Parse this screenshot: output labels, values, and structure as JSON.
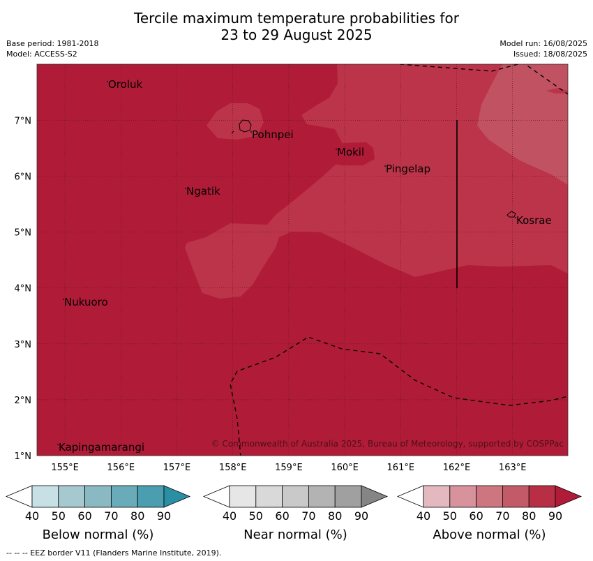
{
  "title_line1": "Tercile maximum temperature probabilities for",
  "title_line2": "23 to 29 August 2025",
  "base_period": "Base period: 1981-2018",
  "model": "Model: ACCESS-S2",
  "model_run": "Model run: 16/08/2025",
  "issued": "Issued: 18/08/2025",
  "copyright": "© Commonwealth of Australia 2025, Bureau of Meteorology, supported by COSPPac",
  "footnote": "--  --  -- EEZ border V11 (Flanders Marine Institute, 2019).",
  "axes": {
    "lon_ticks": [
      "155°E",
      "156°E",
      "157°E",
      "158°E",
      "159°E",
      "160°E",
      "161°E",
      "162°E",
      "163°E"
    ],
    "lat_ticks": [
      "1°N",
      "2°N",
      "3°N",
      "4°N",
      "5°N",
      "6°N",
      "7°N"
    ]
  },
  "places": [
    {
      "name": "Oroluk"
    },
    {
      "name": "Pohnpei"
    },
    {
      "name": "Mokil"
    },
    {
      "name": "Pingelap"
    },
    {
      "name": "Ngatik"
    },
    {
      "name": "Kosrae"
    },
    {
      "name": "Nukuoro"
    },
    {
      "name": "Kapingamarangi"
    }
  ],
  "colorbars": [
    {
      "label": "Below normal (%)",
      "ticks": [
        "40",
        "50",
        "60",
        "70",
        "80",
        "90"
      ],
      "colors": [
        "#ffffff",
        "#c7e0e6",
        "#a6c8cf",
        "#8ab9c3",
        "#6aabb9",
        "#4a9eb0",
        "#2a8ea5"
      ]
    },
    {
      "label": "Near normal (%)",
      "ticks": [
        "40",
        "50",
        "60",
        "70",
        "80",
        "90"
      ],
      "colors": [
        "#ffffff",
        "#e6e6e6",
        "#d9d9d9",
        "#c9c9c9",
        "#b3b3b3",
        "#a0a0a0",
        "#858585"
      ]
    },
    {
      "label": "Above normal (%)",
      "ticks": [
        "40",
        "50",
        "60",
        "70",
        "80",
        "90"
      ],
      "colors": [
        "#ffffff",
        "#e3b8bf",
        "#d7929c",
        "#cd7680",
        "#c35a67",
        "#b82f45",
        "#b01c37"
      ]
    }
  ],
  "colors": {
    "above_90": "#b01c37",
    "above_80": "#bc3449",
    "above_70": "#c05261"
  }
}
